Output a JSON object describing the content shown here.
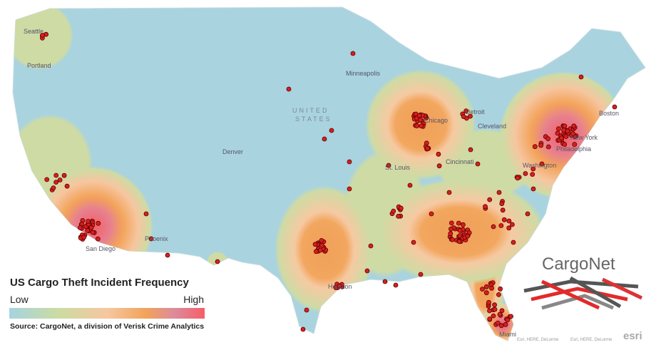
{
  "map": {
    "labels": [
      "Seattle",
      "Portland",
      "Minneapolis",
      "UNITED",
      "STATES",
      "Denver",
      "Chicago",
      "Detroit",
      "Cleveland",
      "Boston",
      "New York",
      "Philadelphia",
      "Washington",
      "Cincinnati",
      "St. Louis",
      "Phoenix",
      "San Diego",
      "Houston",
      "Miami"
    ]
  },
  "legend": {
    "title": "US Cargo Theft  Incident Frequency",
    "low": "Low",
    "high": "High",
    "source": "Source: CargoNet, a division of Verisk Crime Analytics"
  },
  "logo": "CargoNet",
  "attribution": [
    "Esri, HERE, DeLorme",
    "Esri, HERE, DeLorme"
  ],
  "esri": "esri"
}
